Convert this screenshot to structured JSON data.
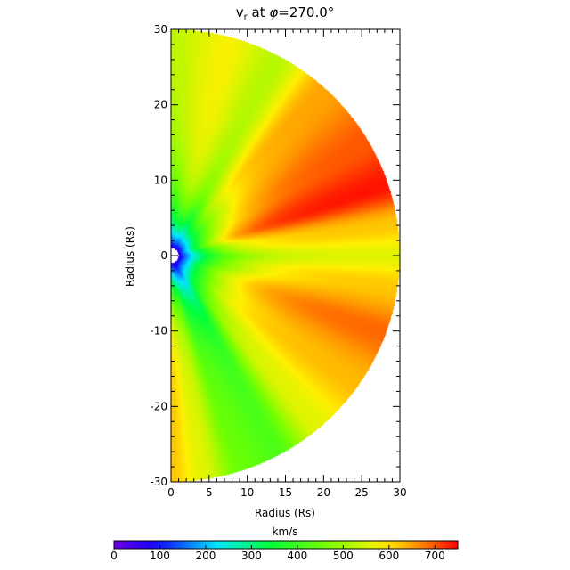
{
  "chart_data": {
    "type": "heatmap",
    "title": "v_r at φ=270.0°",
    "title_parts": {
      "var": "v",
      "sub": "r",
      "rest": " at ",
      "phi": "φ",
      "eq": "=270.0°"
    },
    "xlabel": "Radius (Rs)",
    "ylabel": "Radius (Rs)",
    "xlim": [
      0,
      30
    ],
    "ylim": [
      -30,
      30
    ],
    "x_ticks": [
      "0",
      "5",
      "10",
      "15",
      "20",
      "25",
      "30"
    ],
    "y_ticks": [
      "-30",
      "-20",
      "-10",
      "0",
      "10",
      "20",
      "30"
    ],
    "domain": "half-disk, r ≤ 30 Rs, x ≥ 0",
    "colorbar": {
      "label": "km/s",
      "range": [
        0,
        750
      ],
      "ticks": [
        "0",
        "100",
        "200",
        "300",
        "400",
        "500",
        "600",
        "700"
      ],
      "colormap": "rainbow"
    },
    "angular_profile": [
      {
        "lat_deg": 90,
        "vr": 530
      },
      {
        "lat_deg": 75,
        "vr": 580
      },
      {
        "lat_deg": 62,
        "vr": 520
      },
      {
        "lat_deg": 48,
        "vr": 650
      },
      {
        "lat_deg": 30,
        "vr": 700
      },
      {
        "lat_deg": 18,
        "vr": 740
      },
      {
        "lat_deg": 8,
        "vr": 620
      },
      {
        "lat_deg": 0,
        "vr": 560
      },
      {
        "lat_deg": -8,
        "vr": 620
      },
      {
        "lat_deg": -20,
        "vr": 690
      },
      {
        "lat_deg": -35,
        "vr": 630
      },
      {
        "lat_deg": -50,
        "vr": 560
      },
      {
        "lat_deg": -62,
        "vr": 420
      },
      {
        "lat_deg": -72,
        "vr": 450
      },
      {
        "lat_deg": -82,
        "vr": 560
      },
      {
        "lat_deg": -90,
        "vr": 620
      }
    ],
    "inner_boundary_rs": 1,
    "inner_slow_region": "v_r ≈ 50–200 km/s near r < 3 Rs"
  }
}
